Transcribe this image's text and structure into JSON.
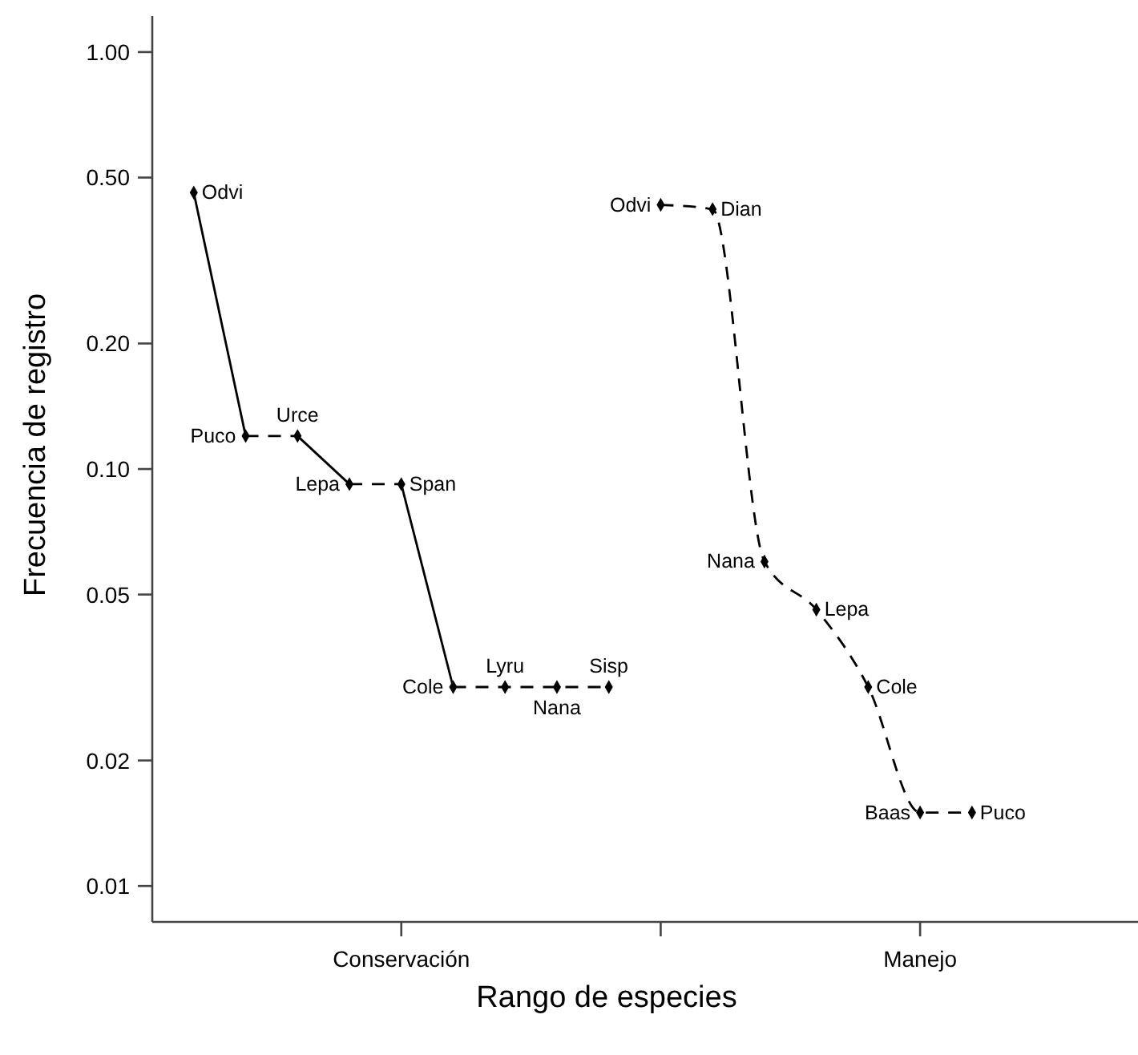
{
  "chart_data": {
    "type": "scatter",
    "xlabel": "Rango de especies",
    "ylabel": "Frecuencia de registro",
    "log": "y",
    "marker": "diamond",
    "categories": [
      null,
      null,
      null,
      null,
      "Conservación",
      null,
      null,
      null,
      null,
      null,
      null,
      null,
      null,
      null,
      "Manejo",
      null
    ],
    "ylim": [
      0.0082,
      1.22
    ],
    "yticks": [
      {
        "value": 0.01,
        "label": "0.01"
      },
      {
        "value": 0.02,
        "label": "0.02"
      },
      {
        "value": 0.05,
        "label": "0.05"
      },
      {
        "value": 0.1,
        "label": "0.10"
      },
      {
        "value": 0.2,
        "label": "0.20"
      },
      {
        "value": 0.5,
        "label": "0.50"
      },
      {
        "value": 1,
        "label": "1.00"
      }
    ],
    "series": [
      {
        "color": "#000000",
        "values": [
          0.46,
          0.12,
          0.12,
          0.092,
          0.092,
          0.03,
          0.03,
          0.03,
          0.03,
          null,
          null,
          null,
          null,
          null,
          null,
          null
        ],
        "value_labels": [
          "Odvi",
          "Puco",
          "Urce",
          "Lepa",
          "Span",
          "Cole",
          "Lyru",
          "Nana",
          "Sisp",
          null,
          null,
          null,
          null,
          null,
          null,
          null
        ]
      },
      {
        "color": "#000000",
        "values": [
          null,
          null,
          null,
          null,
          null,
          null,
          null,
          null,
          null,
          0.43,
          0.42,
          0.06,
          0.046,
          0.03,
          0.015,
          0.015
        ],
        "value_labels": [
          null,
          null,
          null,
          null,
          null,
          null,
          null,
          null,
          null,
          "Odvi",
          "Dian",
          "Nana",
          "Lepa",
          "Cole",
          "Baas",
          "Puco"
        ]
      },
      {
        "type": "line",
        "color": "#000000",
        "line_style": "solid",
        "marker": "none",
        "values": [
          0.46,
          0.12,
          null,
          null,
          null,
          null,
          null,
          null,
          null,
          null,
          null,
          null,
          null,
          null,
          null,
          null
        ]
      },
      {
        "type": "line",
        "color": "#000000",
        "line_style": "dashed",
        "marker": "none",
        "values": [
          null,
          0.12,
          0.12,
          null,
          null,
          null,
          null,
          null,
          null,
          null,
          null,
          null,
          null,
          null,
          null,
          null
        ]
      },
      {
        "type": "line",
        "color": "#000000",
        "line_style": "solid",
        "marker": "none",
        "values": [
          null,
          null,
          0.12,
          0.092,
          null,
          null,
          null,
          null,
          null,
          null,
          null,
          null,
          null,
          null,
          null,
          null
        ]
      },
      {
        "type": "line",
        "color": "#000000",
        "line_style": "dashed",
        "marker": "none",
        "values": [
          null,
          null,
          null,
          0.092,
          0.092,
          null,
          null,
          null,
          null,
          null,
          null,
          null,
          null,
          null,
          null,
          null
        ]
      },
      {
        "type": "line",
        "color": "#000000",
        "line_style": "solid",
        "marker": "none",
        "values": [
          null,
          null,
          null,
          null,
          0.092,
          0.03,
          null,
          null,
          null,
          null,
          null,
          null,
          null,
          null,
          null,
          null
        ]
      },
      {
        "type": "line",
        "color": "#000000",
        "line_style": "dashed",
        "marker": "none",
        "values": [
          null,
          null,
          null,
          null,
          null,
          0.03,
          0.03,
          0.03,
          0.03,
          null,
          null,
          null,
          null,
          null,
          null,
          null
        ]
      },
      {
        "type": "line",
        "color": "#000000",
        "line_style": "dashed",
        "marker": "none",
        "values": [
          null,
          null,
          null,
          null,
          null,
          null,
          null,
          null,
          null,
          0.43,
          0.42,
          0.06,
          0.046,
          0.03,
          0.015,
          0.015
        ]
      }
    ]
  }
}
